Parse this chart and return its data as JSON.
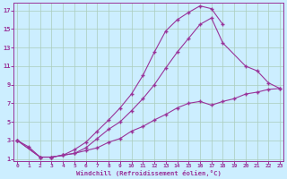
{
  "xlabel": "Windchill (Refroidissement éolien,°C)",
  "bg_color": "#cceeff",
  "grid_color": "#aaccbb",
  "line_color": "#993399",
  "xlim_min": -0.3,
  "xlim_max": 23.3,
  "ylim_min": 0.8,
  "ylim_max": 17.8,
  "xticks": [
    0,
    1,
    2,
    3,
    4,
    5,
    6,
    7,
    8,
    9,
    10,
    11,
    12,
    13,
    14,
    15,
    16,
    17,
    18,
    19,
    20,
    21,
    22,
    23
  ],
  "yticks": [
    1,
    3,
    5,
    7,
    9,
    11,
    13,
    15,
    17
  ],
  "curve1_x": [
    0,
    1,
    2,
    3,
    4,
    5,
    6,
    7,
    8,
    9,
    10,
    11,
    12,
    13,
    14,
    15,
    16,
    17,
    18,
    19,
    20,
    21,
    22,
    23
  ],
  "curve1_y": [
    3.0,
    2.3,
    1.2,
    1.2,
    1.4,
    1.6,
    1.9,
    2.2,
    2.8,
    3.2,
    4.0,
    4.5,
    5.2,
    5.8,
    6.5,
    7.0,
    7.2,
    6.8,
    7.2,
    7.5,
    8.0,
    8.2,
    8.5,
    8.6
  ],
  "curve2_x": [
    0,
    2,
    3,
    4,
    5,
    6,
    7,
    8,
    9,
    10,
    11,
    12,
    13,
    14,
    15,
    16,
    17,
    18,
    20,
    21,
    22,
    23
  ],
  "curve2_y": [
    3.0,
    1.2,
    1.2,
    1.4,
    1.6,
    2.2,
    3.2,
    4.2,
    5.0,
    6.2,
    7.5,
    9.0,
    10.8,
    12.5,
    14.0,
    15.5,
    16.2,
    13.5,
    11.0,
    10.5,
    9.2,
    8.6
  ],
  "curve3_x": [
    0,
    2,
    3,
    4,
    5,
    6,
    7,
    8,
    9,
    10,
    11,
    12,
    13,
    14,
    15,
    16,
    17,
    18
  ],
  "curve3_y": [
    3.0,
    1.2,
    1.2,
    1.4,
    2.0,
    2.8,
    4.0,
    5.2,
    6.5,
    8.0,
    10.0,
    12.5,
    14.8,
    16.0,
    16.8,
    17.5,
    17.2,
    15.5
  ]
}
